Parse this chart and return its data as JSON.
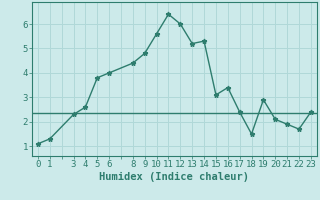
{
  "x": [
    0,
    1,
    3,
    4,
    5,
    6,
    8,
    9,
    10,
    11,
    12,
    13,
    14,
    15,
    16,
    17,
    18,
    19,
    20,
    21,
    22,
    23
  ],
  "y": [
    1.1,
    1.3,
    2.3,
    2.6,
    3.8,
    4.0,
    4.4,
    4.8,
    5.6,
    6.4,
    6.0,
    5.2,
    5.3,
    3.1,
    3.4,
    2.4,
    1.5,
    2.9,
    2.1,
    1.9,
    1.7,
    2.4
  ],
  "mean_line_y": 2.35,
  "line_color": "#2e7d6e",
  "mean_color": "#2e7d6e",
  "bg_color": "#cceaea",
  "grid_color": "#b0d8d8",
  "tick_label_color": "#2e7d6e",
  "xlabel": "Humidex (Indice chaleur)",
  "xticks": [
    0,
    1,
    3,
    4,
    5,
    6,
    8,
    9,
    10,
    11,
    12,
    13,
    14,
    15,
    16,
    17,
    18,
    19,
    20,
    21,
    22,
    23
  ],
  "yticks": [
    1,
    2,
    3,
    4,
    5,
    6
  ],
  "ylim": [
    0.6,
    6.9
  ],
  "xlim": [
    -0.5,
    23.5
  ],
  "marker": "*",
  "markersize": 3.5,
  "linewidth": 1.0,
  "tick_fontsize": 6.5,
  "label_fontsize": 7.5
}
